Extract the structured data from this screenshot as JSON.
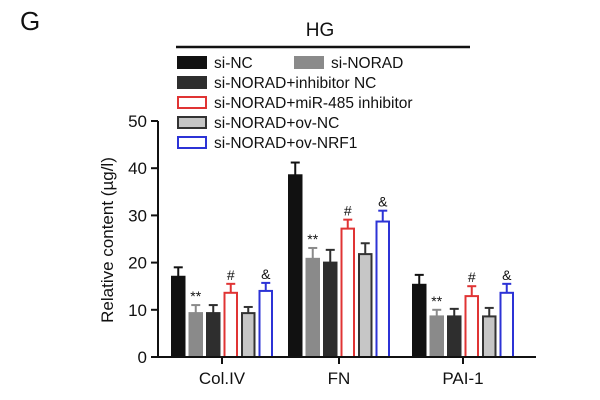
{
  "panel_letter": "G",
  "chart_data": {
    "type": "bar",
    "group_label": "HG",
    "title": "",
    "xlabel": "",
    "ylabel": "Relative content (µg/l)",
    "ylim": [
      0,
      50
    ],
    "yticks": [
      "0",
      "10",
      "20",
      "30",
      "40",
      "50"
    ],
    "grid": false,
    "legend_position": "top",
    "categories": [
      "Col.IV",
      "FN",
      "PAI-1"
    ],
    "series": [
      {
        "name": "si-NC",
        "fill": "#111111",
        "stroke": "#111111",
        "values": [
          17,
          38.5,
          15.3
        ],
        "errors": [
          2,
          2.7,
          2.1
        ],
        "marks": [
          "",
          "",
          ""
        ]
      },
      {
        "name": "si-NORAD",
        "fill": "#8a8a8a",
        "stroke": "#8a8a8a",
        "values": [
          9.3,
          20.8,
          8.6
        ],
        "errors": [
          1.7,
          2.3,
          1.4
        ],
        "marks": [
          "**",
          "**",
          "**"
        ]
      },
      {
        "name": "si-NORAD+inhibitor NC",
        "fill": "#2e2e2e",
        "stroke": "#2e2e2e",
        "values": [
          9.3,
          20,
          8.6
        ],
        "errors": [
          1.7,
          2.7,
          1.6
        ],
        "marks": [
          "",
          "",
          ""
        ]
      },
      {
        "name": "si-NORAD+miR-485 inhibitor",
        "fill": "#ffffff",
        "stroke": "#e03434",
        "values": [
          13.6,
          27.2,
          12.9
        ],
        "errors": [
          1.9,
          1.9,
          2.1
        ],
        "marks": [
          "#",
          "#",
          "#"
        ]
      },
      {
        "name": "si-NORAD+ov-NC",
        "fill": "#c6c6c6",
        "stroke": "#333333",
        "values": [
          9.3,
          21.8,
          8.6
        ],
        "errors": [
          1.3,
          2.3,
          1.8
        ],
        "marks": [
          "",
          "",
          ""
        ]
      },
      {
        "name": "si-NORAD+ov-NRF1",
        "fill": "#ffffff",
        "stroke": "#2c33d6",
        "values": [
          14,
          28.7,
          13.6
        ],
        "errors": [
          1.7,
          2.3,
          1.9
        ],
        "marks": [
          "&",
          "&",
          "&"
        ]
      }
    ]
  }
}
